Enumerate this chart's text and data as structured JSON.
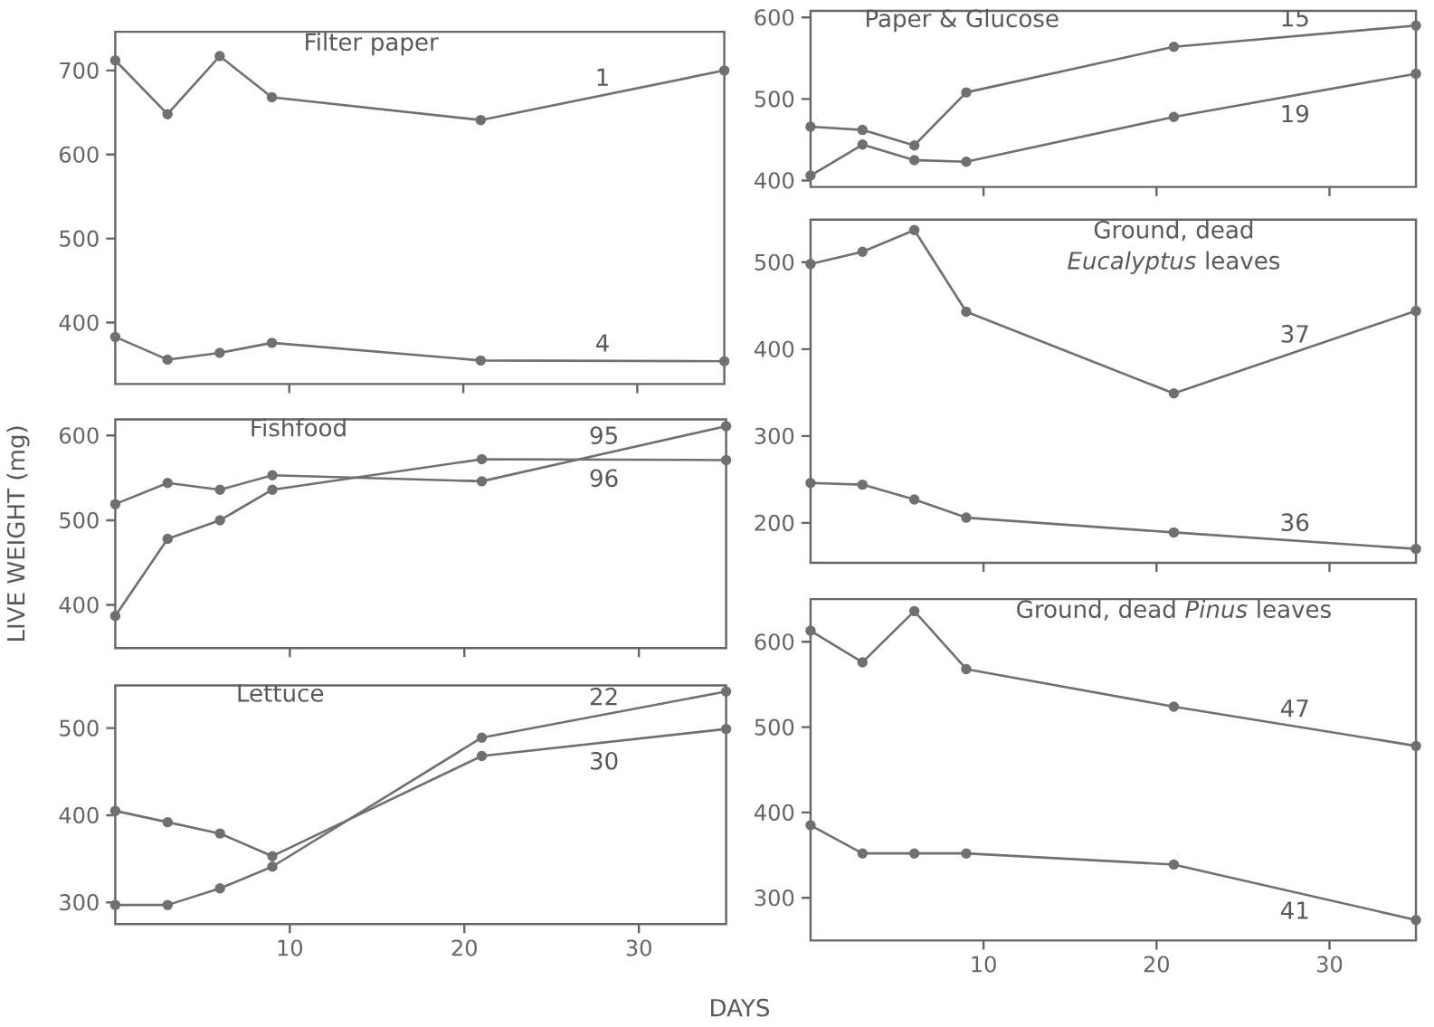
{
  "chart_data": [
    {
      "type": "line",
      "title": "Filter paper",
      "x": [
        0,
        3,
        6,
        9,
        21,
        35
      ],
      "xlim": [
        0,
        35
      ],
      "xticks": [
        10,
        20,
        30
      ],
      "ylim": [
        327,
        746
      ],
      "yticks": [
        400,
        500,
        600,
        700
      ],
      "tick_labels": "y",
      "marker": "circle",
      "line_style": "solid",
      "series": [
        {
          "name": "1",
          "color": "#707070",
          "values": [
            712,
            648,
            717,
            668,
            641,
            700
          ]
        },
        {
          "name": "4",
          "color": "#707070",
          "values": [
            383,
            356,
            364,
            376,
            355,
            354
          ]
        }
      ]
    },
    {
      "type": "line",
      "title": "Fishfood",
      "ylabel": "LIVE WEIGHT (mg)",
      "x": [
        0,
        3,
        6,
        9,
        21,
        35
      ],
      "xlim": [
        0,
        35
      ],
      "xticks": [
        10,
        20,
        30
      ],
      "ylim": [
        349,
        619
      ],
      "yticks": [
        400,
        500,
        600
      ],
      "tick_labels": "y",
      "marker": "circle",
      "line_style": "solid",
      "series": [
        {
          "name": "95",
          "color": "#707070",
          "values": [
            519,
            544,
            536,
            553,
            546,
            611
          ]
        },
        {
          "name": "96",
          "color": "#707070",
          "values": [
            387,
            478,
            500,
            536,
            572,
            571
          ]
        }
      ]
    },
    {
      "type": "line",
      "title": "Lettuce",
      "xlabel": "DAYS",
      "x": [
        0,
        3,
        6,
        9,
        21,
        35
      ],
      "xlim": [
        0,
        35
      ],
      "xticks": [
        10,
        20,
        30
      ],
      "ylim": [
        275,
        549
      ],
      "yticks": [
        300,
        400,
        500
      ],
      "marker": "circle",
      "line_style": "solid",
      "series": [
        {
          "name": "22",
          "color": "#707070",
          "values": [
            297,
            297,
            316,
            341,
            489,
            542
          ]
        },
        {
          "name": "30",
          "color": "#707070",
          "values": [
            405,
            392,
            379,
            353,
            468,
            499
          ]
        }
      ]
    },
    {
      "type": "line",
      "title": "Paper & Glucose",
      "x": [
        0,
        3,
        6,
        9,
        21,
        35
      ],
      "xlim": [
        0,
        35
      ],
      "xticks": [
        10,
        20,
        30
      ],
      "ylim": [
        392,
        608
      ],
      "yticks": [
        400,
        500,
        600
      ],
      "tick_labels": "y",
      "marker": "circle",
      "line_style": "solid",
      "series": [
        {
          "name": "15",
          "color": "#707070",
          "values": [
            466,
            462,
            443,
            508,
            564,
            590
          ]
        },
        {
          "name": "19",
          "color": "#707070",
          "values": [
            406,
            444,
            425,
            423,
            478,
            531
          ]
        }
      ]
    },
    {
      "type": "line",
      "title": "Ground, dead *Eucalyptus* leaves",
      "x": [
        0,
        3,
        6,
        9,
        21,
        35
      ],
      "xlim": [
        0,
        35
      ],
      "xticks": [
        10,
        20,
        30
      ],
      "ylim": [
        154,
        549
      ],
      "yticks": [
        200,
        300,
        400,
        500
      ],
      "tick_labels": "y",
      "marker": "circle",
      "line_style": "solid",
      "series": [
        {
          "name": "37",
          "color": "#707070",
          "values": [
            498,
            512,
            537,
            443,
            349,
            444
          ]
        },
        {
          "name": "36",
          "color": "#707070",
          "values": [
            246,
            244,
            227,
            206,
            189,
            170
          ]
        }
      ]
    },
    {
      "type": "line",
      "title": "Ground, dead *Pinus* leaves",
      "x": [
        0,
        3,
        6,
        9,
        21,
        35
      ],
      "xlim": [
        0,
        35
      ],
      "xticks": [
        10,
        20,
        30
      ],
      "ylim": [
        250,
        650
      ],
      "yticks": [
        300,
        400,
        500,
        600
      ],
      "marker": "circle",
      "line_style": "solid",
      "series": [
        {
          "name": "47",
          "color": "#707070",
          "values": [
            613,
            576,
            636,
            568,
            524,
            478
          ]
        },
        {
          "name": "41",
          "color": "#707070",
          "values": [
            385,
            352,
            352,
            352,
            339,
            274
          ]
        }
      ]
    }
  ]
}
